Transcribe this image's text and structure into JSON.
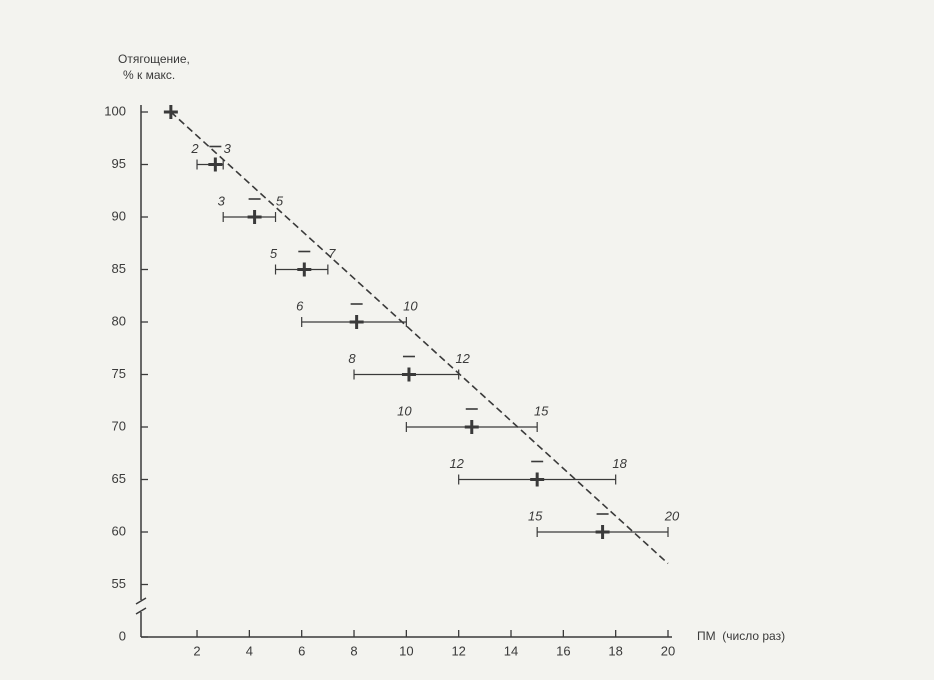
{
  "chart_data": {
    "type": "errorbar_scatter",
    "y_label_lines": [
      "Отягощение,",
      "% к макс."
    ],
    "x_label": "ПМ  (число раз)",
    "x": [
      1,
      2.7,
      4.2,
      6.1,
      8.1,
      10.1,
      12.5,
      15,
      17.5
    ],
    "values": [
      100,
      95,
      90,
      85,
      80,
      75,
      70,
      65,
      60
    ],
    "x_low": [
      null,
      2,
      3,
      5,
      6,
      8,
      10,
      12,
      15
    ],
    "x_high": [
      null,
      3,
      5,
      7,
      10,
      12,
      15,
      18,
      20
    ],
    "fit_line": {
      "x": [
        1,
        20
      ],
      "y": [
        100,
        57
      ]
    },
    "xlim": [
      0,
      20
    ],
    "xticks": [
      2,
      4,
      6,
      8,
      10,
      12,
      14,
      16,
      18,
      20
    ],
    "ylim": [
      0,
      100
    ],
    "y_break": [
      0,
      50
    ],
    "yticks": [
      0,
      55,
      60,
      65,
      70,
      75,
      80,
      85,
      90,
      95,
      100
    ],
    "color": "#3a3a3a"
  }
}
